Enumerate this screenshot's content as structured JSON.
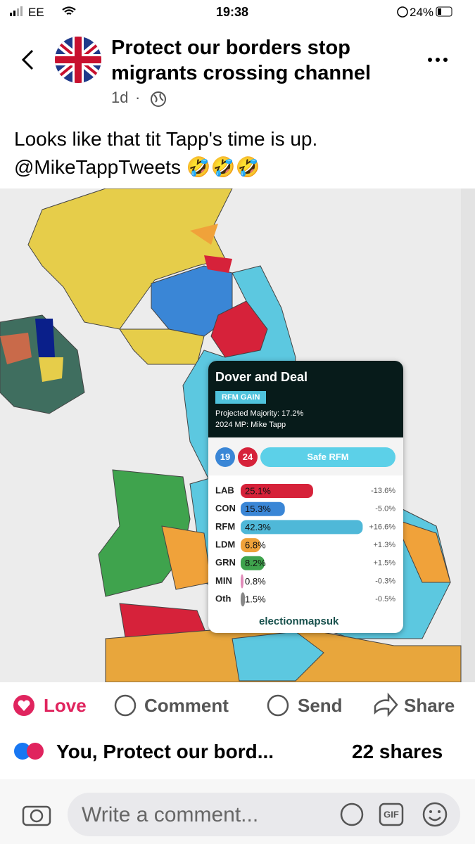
{
  "status_bar": {
    "carrier": "EE",
    "time": "19:38",
    "battery": "24%"
  },
  "post": {
    "group_line1": "Protect our borders stop",
    "group_line2": "migrants crossing channel",
    "age": "1d",
    "text_line1": "Looks like that tit Tapp's time is up.",
    "text_line2": "@MikeTappTweets 🤣🤣🤣"
  },
  "map_card": {
    "constituency": "Dover and Deal",
    "badge": "RFM GAIN",
    "majority": "Projected Majority: 17.2%",
    "mp": "2024 MP: Mike Tapp",
    "circle_1": "19",
    "circle_2": "24",
    "rating": "Safe RFM",
    "parties": [
      {
        "name": "LAB",
        "share": 25.1,
        "share_label": "25.1%",
        "change": "-13.6%",
        "color": "#d6223a"
      },
      {
        "name": "CON",
        "share": 15.3,
        "share_label": "15.3%",
        "change": "-5.0%",
        "color": "#3a86d6"
      },
      {
        "name": "RFM",
        "share": 42.3,
        "share_label": "42.3%",
        "change": "+16.6%",
        "color": "#4fb8d8"
      },
      {
        "name": "LDM",
        "share": 6.8,
        "share_label": "6.8%",
        "change": "+1.3%",
        "color": "#f0a23a"
      },
      {
        "name": "GRN",
        "share": 8.2,
        "share_label": "8.2%",
        "change": "+1.5%",
        "color": "#3fa34d"
      },
      {
        "name": "MIN",
        "share": 0.8,
        "share_label": "0.8%",
        "change": "-0.3%",
        "color": "#e08ab8"
      },
      {
        "name": "Oth",
        "share": 1.5,
        "share_label": "1.5%",
        "change": "-0.5%",
        "color": "#888888"
      }
    ],
    "source": "electionmapsuk"
  },
  "actions": {
    "love": "Love",
    "comment": "Comment",
    "send": "Send",
    "share": "Share"
  },
  "reactions": {
    "names": "You, Protect our bord...",
    "shares": "22 shares"
  },
  "comment_box": {
    "placeholder": "Write a comment..."
  }
}
